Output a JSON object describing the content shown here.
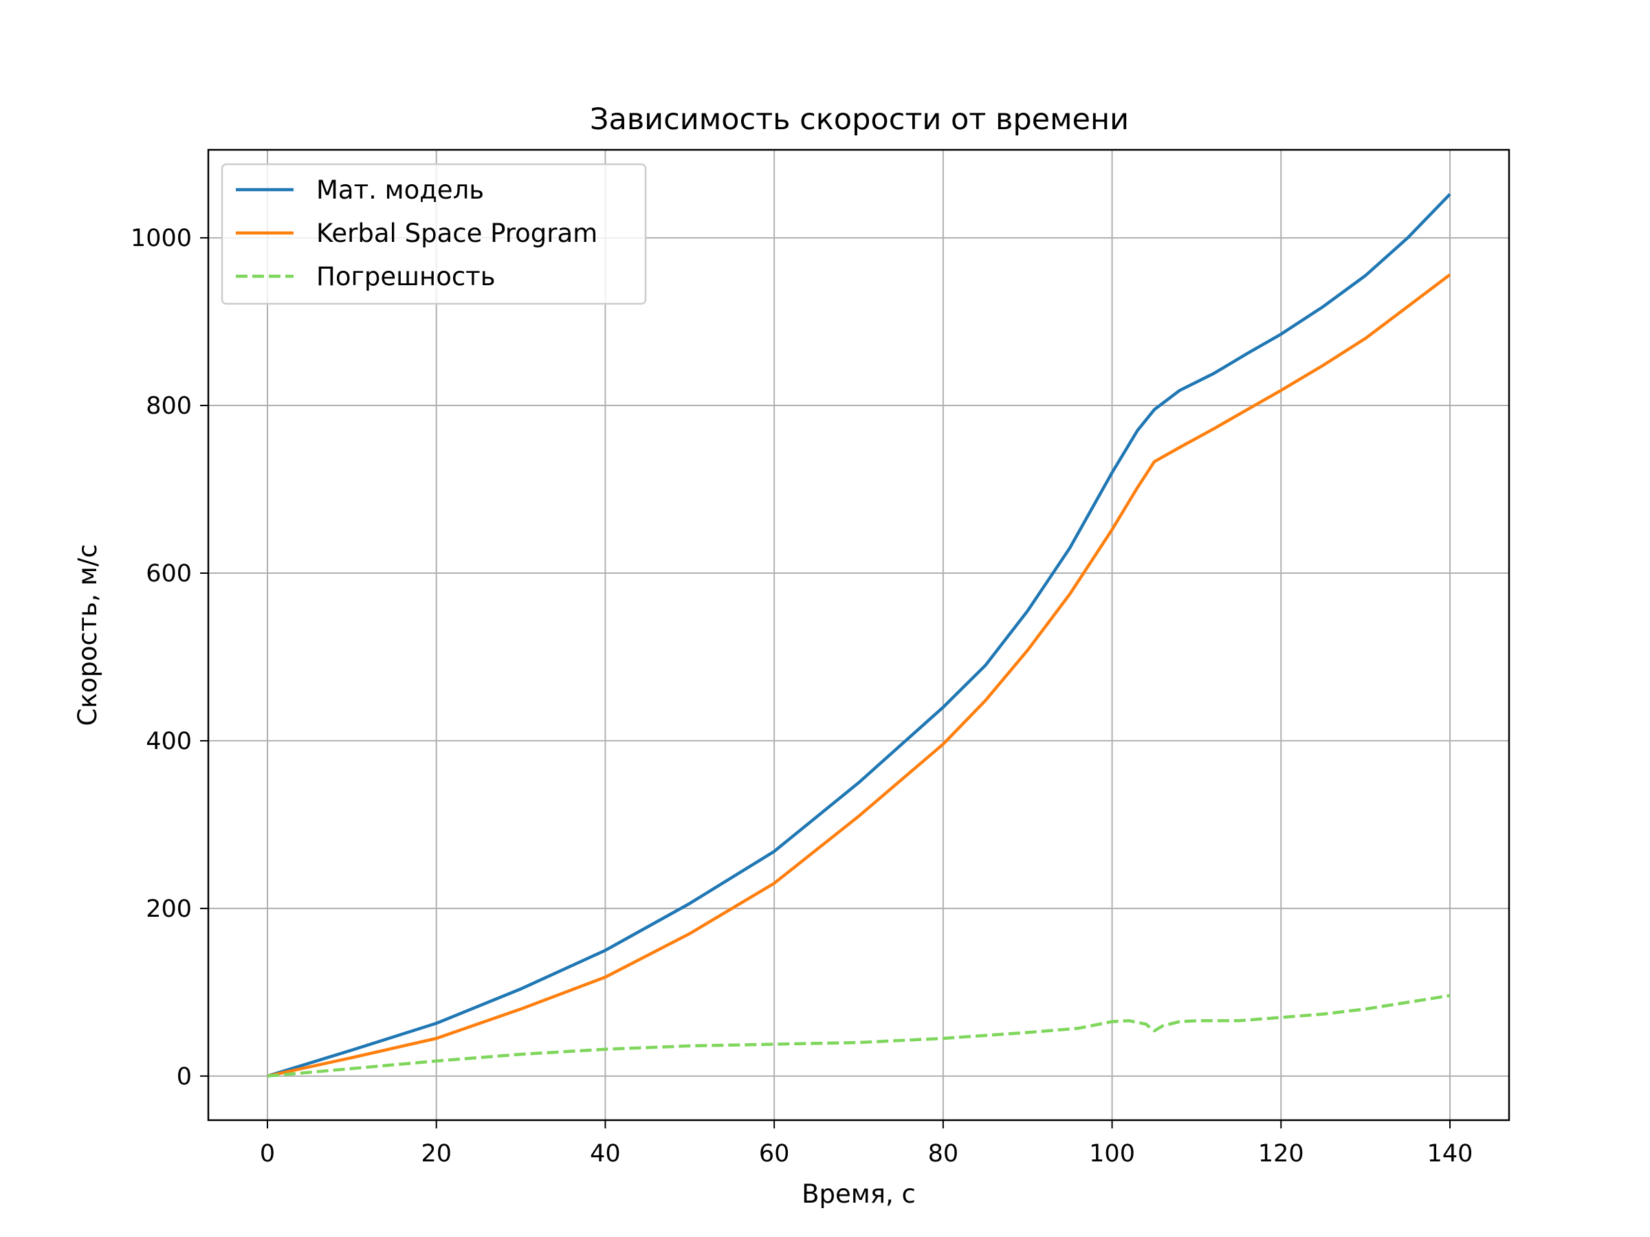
{
  "chart_data": {
    "type": "line",
    "title": "Зависимость скорости от времени",
    "xlabel": "Время, с",
    "ylabel": "Скорость, м/с",
    "xlim": [
      -7,
      147
    ],
    "ylim": [
      -52.6,
      1105
    ],
    "xticks": [
      0,
      20,
      40,
      60,
      80,
      100,
      120,
      140
    ],
    "yticks": [
      0,
      200,
      400,
      600,
      800,
      1000
    ],
    "xtick_labels": [
      "0",
      "20",
      "40",
      "60",
      "80",
      "100",
      "120",
      "140"
    ],
    "ytick_labels": [
      "0",
      "200",
      "400",
      "600",
      "800",
      "1000"
    ],
    "grid": true,
    "legend_position": "upper-left",
    "series": [
      {
        "name": "Мат. модель",
        "color": "#1f77b4",
        "style": "solid",
        "x": [
          0,
          10,
          20,
          30,
          40,
          50,
          60,
          70,
          80,
          85,
          90,
          95,
          100,
          103,
          105,
          108,
          112,
          116,
          120,
          125,
          130,
          135,
          140
        ],
        "y": [
          0,
          31,
          63,
          104,
          150,
          206,
          268,
          350,
          440,
          490,
          555,
          630,
          720,
          770,
          795,
          818,
          838,
          862,
          885,
          918,
          955,
          1000,
          1052
        ]
      },
      {
        "name": "Kerbal Space Program",
        "color": "#ff7f0e",
        "style": "solid",
        "x": [
          0,
          10,
          20,
          30,
          40,
          50,
          60,
          70,
          80,
          85,
          90,
          95,
          100,
          103,
          105,
          108,
          112,
          116,
          120,
          125,
          130,
          135,
          140
        ],
        "y": [
          0,
          22,
          45,
          80,
          118,
          170,
          230,
          310,
          396,
          448,
          508,
          575,
          652,
          702,
          733,
          750,
          772,
          795,
          818,
          848,
          880,
          918,
          956
        ]
      },
      {
        "name": "Погрешность",
        "color": "#7fd65c",
        "style": "dashed",
        "x": [
          0,
          10,
          20,
          30,
          40,
          50,
          60,
          70,
          80,
          90,
          96,
          100,
          102,
          104,
          105,
          106,
          108,
          110,
          115,
          120,
          125,
          130,
          135,
          140
        ],
        "y": [
          0,
          9,
          18,
          26,
          32,
          36,
          38,
          40,
          45,
          52,
          57,
          65,
          66,
          62,
          54,
          60,
          65,
          66,
          66,
          70,
          74,
          80,
          88,
          96
        ]
      }
    ]
  }
}
